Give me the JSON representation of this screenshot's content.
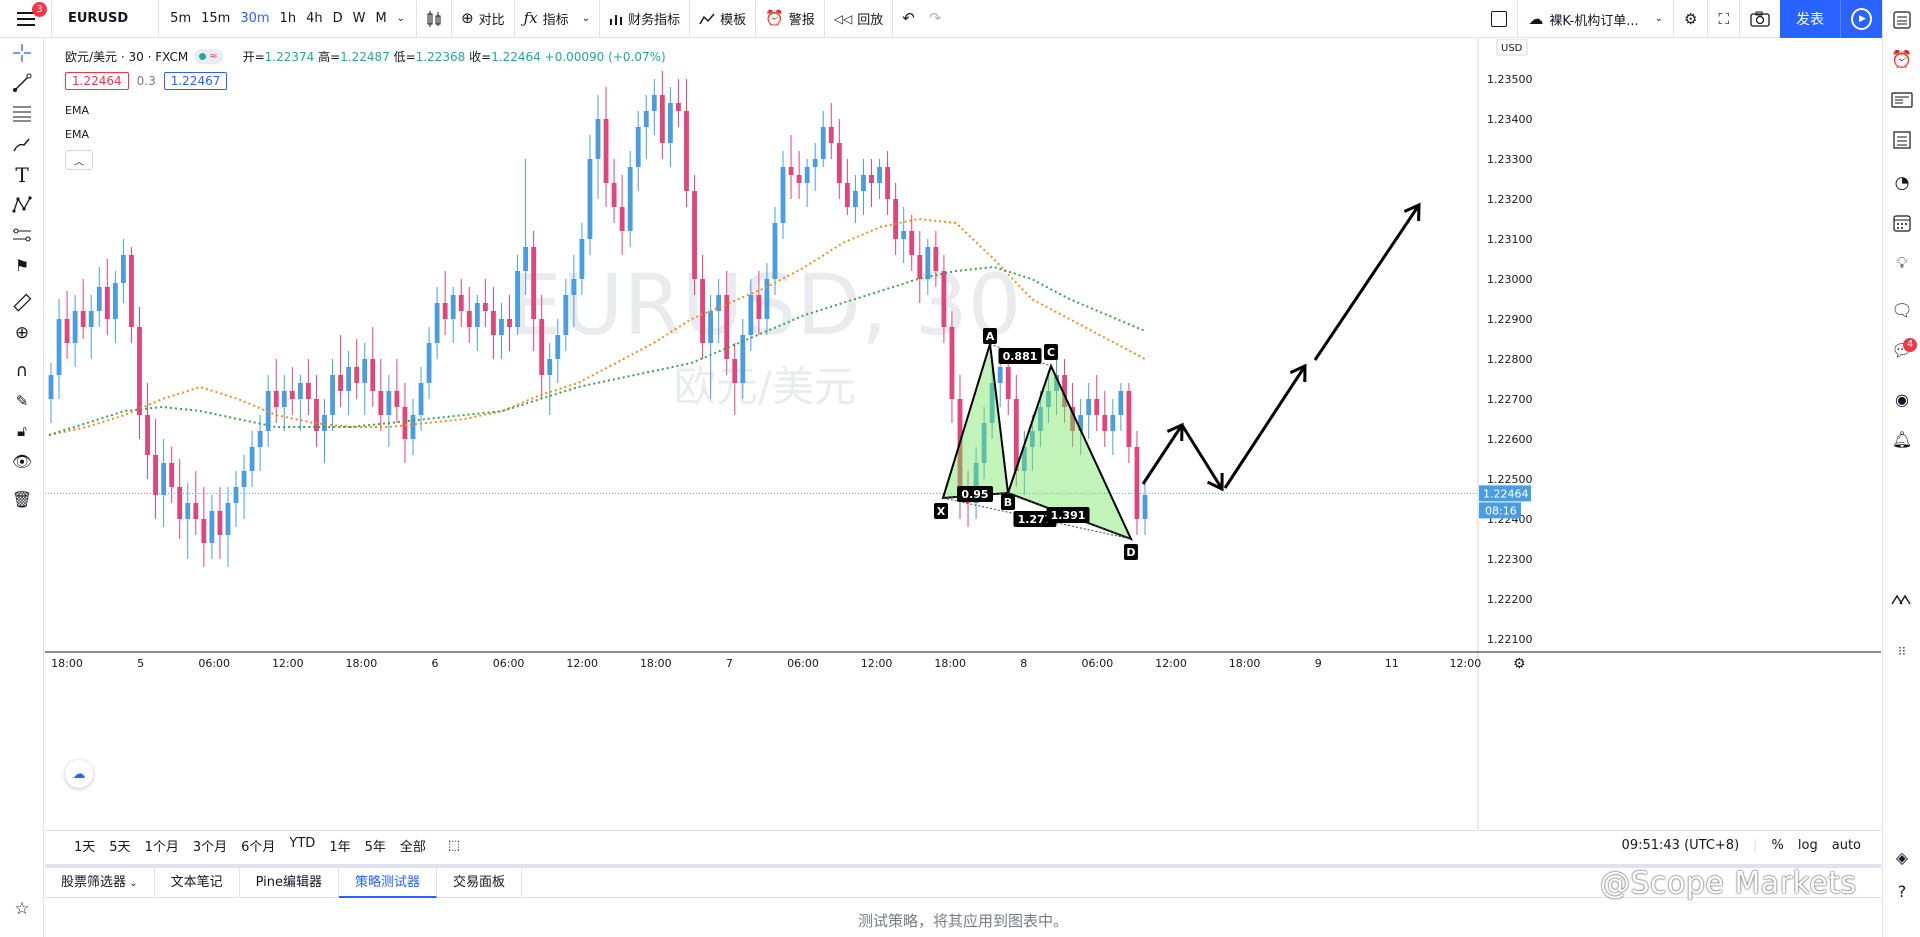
{
  "toolbar": {
    "menu_badge": "3",
    "symbol": "EURUSD",
    "intervals": [
      "5m",
      "15m",
      "30m",
      "1h",
      "4h",
      "D",
      "W",
      "M"
    ],
    "active_interval": "30m",
    "compare_label": "对比",
    "indicators_label": "指标",
    "financials_label": "财务指标",
    "templates_label": "模板",
    "alerts_label": "警报",
    "replay_label": "回放",
    "layout_name": "裸K-机构订单...",
    "publish_label": "发表"
  },
  "legend": {
    "symbol_desc": "欧元/美元 · 30 · FXCM",
    "open_label": "开=",
    "open": "1.22374",
    "high_label": "高=",
    "high": "1.22487",
    "low_label": "低=",
    "low": "1.22368",
    "close_label": "收=",
    "close": "1.22464",
    "change": "+0.00090 (+0.07%)",
    "sell_price": "1.22464",
    "spread": "0.3",
    "buy_price": "1.22467",
    "ema1": "EMA",
    "ema2": "EMA"
  },
  "chart_data": {
    "type": "candlestick",
    "watermark_symbol": "EURUSD, 30",
    "watermark_desc": "欧元/美元",
    "currency": "USD",
    "y_ticks": [
      "1.23500",
      "1.23400",
      "1.23300",
      "1.23200",
      "1.23100",
      "1.23000",
      "1.22900",
      "1.22800",
      "1.22700",
      "1.22600",
      "1.22500",
      "1.22400",
      "1.22300",
      "1.22200",
      "1.22100"
    ],
    "ylim": [
      1.2207,
      1.236
    ],
    "x_ticks": [
      "18:00",
      "5",
      "06:00",
      "12:00",
      "18:00",
      "6",
      "06:00",
      "12:00",
      "18:00",
      "7",
      "06:00",
      "12:00",
      "18:00",
      "8",
      "06:00",
      "12:00",
      "18:00",
      "9",
      "11",
      "12:00"
    ],
    "last_price": "1.22464",
    "countdown": "08:16",
    "candles": [
      [
        1.227,
        1.2279,
        1.2264,
        1.2276
      ],
      [
        1.2276,
        1.2295,
        1.227,
        1.229
      ],
      [
        1.229,
        1.2297,
        1.228,
        1.2284
      ],
      [
        1.2284,
        1.2296,
        1.2278,
        1.2292
      ],
      [
        1.2292,
        1.23,
        1.2285,
        1.2288
      ],
      [
        1.2288,
        1.2296,
        1.228,
        1.2292
      ],
      [
        1.2292,
        1.2303,
        1.2288,
        1.2298
      ],
      [
        1.2298,
        1.2305,
        1.2286,
        1.229
      ],
      [
        1.229,
        1.2302,
        1.2284,
        1.2299
      ],
      [
        1.2299,
        1.231,
        1.2294,
        1.2306
      ],
      [
        1.2306,
        1.2308,
        1.2284,
        1.2288
      ],
      [
        1.2288,
        1.2293,
        1.226,
        1.2266
      ],
      [
        1.2266,
        1.2274,
        1.225,
        1.2256
      ],
      [
        1.2256,
        1.2265,
        1.224,
        1.2246
      ],
      [
        1.2246,
        1.226,
        1.2238,
        1.2254
      ],
      [
        1.2254,
        1.2258,
        1.2244,
        1.2248
      ],
      [
        1.2248,
        1.2255,
        1.2235,
        1.224
      ],
      [
        1.224,
        1.2249,
        1.223,
        1.2244
      ],
      [
        1.2244,
        1.2252,
        1.2236,
        1.224
      ],
      [
        1.224,
        1.2248,
        1.2228,
        1.2234
      ],
      [
        1.2234,
        1.2246,
        1.223,
        1.2242
      ],
      [
        1.2242,
        1.2248,
        1.223,
        1.2236
      ],
      [
        1.2236,
        1.2248,
        1.2228,
        1.2244
      ],
      [
        1.2244,
        1.2252,
        1.2238,
        1.2248
      ],
      [
        1.2248,
        1.2256,
        1.224,
        1.2252
      ],
      [
        1.2252,
        1.2262,
        1.2248,
        1.2258
      ],
      [
        1.2258,
        1.2266,
        1.2252,
        1.2262
      ],
      [
        1.2262,
        1.2276,
        1.2258,
        1.2272
      ],
      [
        1.2272,
        1.228,
        1.2264,
        1.2268
      ],
      [
        1.2268,
        1.2276,
        1.2262,
        1.2272
      ],
      [
        1.2272,
        1.2278,
        1.2266,
        1.227
      ],
      [
        1.227,
        1.2276,
        1.2262,
        1.2274
      ],
      [
        1.2274,
        1.228,
        1.2266,
        1.227
      ],
      [
        1.227,
        1.2276,
        1.2258,
        1.2262
      ],
      [
        1.2262,
        1.227,
        1.2254,
        1.2266
      ],
      [
        1.2266,
        1.228,
        1.2262,
        1.2276
      ],
      [
        1.2276,
        1.2286,
        1.2268,
        1.2272
      ],
      [
        1.2272,
        1.2282,
        1.2266,
        1.2278
      ],
      [
        1.2278,
        1.2285,
        1.227,
        1.2274
      ],
      [
        1.2274,
        1.2284,
        1.2266,
        1.228
      ],
      [
        1.228,
        1.2288,
        1.2268,
        1.2272
      ],
      [
        1.2272,
        1.228,
        1.2262,
        1.2266
      ],
      [
        1.2266,
        1.2276,
        1.2258,
        1.2272
      ],
      [
        1.2272,
        1.228,
        1.2264,
        1.2268
      ],
      [
        1.2268,
        1.2274,
        1.2254,
        1.226
      ],
      [
        1.226,
        1.227,
        1.2256,
        1.2266
      ],
      [
        1.2266,
        1.2278,
        1.2262,
        1.2274
      ],
      [
        1.2274,
        1.2288,
        1.227,
        1.2284
      ],
      [
        1.2284,
        1.2298,
        1.228,
        1.2294
      ],
      [
        1.2294,
        1.2302,
        1.2286,
        1.229
      ],
      [
        1.229,
        1.2298,
        1.2284,
        1.2296
      ],
      [
        1.2296,
        1.23,
        1.2288,
        1.2292
      ],
      [
        1.2292,
        1.2298,
        1.2284,
        1.2288
      ],
      [
        1.2288,
        1.2296,
        1.2282,
        1.2294
      ],
      [
        1.2294,
        1.23,
        1.2288,
        1.2292
      ],
      [
        1.2292,
        1.2298,
        1.228,
        1.2286
      ],
      [
        1.2286,
        1.2294,
        1.228,
        1.229
      ],
      [
        1.229,
        1.2296,
        1.2282,
        1.2288
      ],
      [
        1.2288,
        1.2306,
        1.2286,
        1.2302
      ],
      [
        1.2302,
        1.233,
        1.2296,
        1.2308
      ],
      [
        1.2308,
        1.2312,
        1.2282,
        1.229
      ],
      [
        1.229,
        1.2296,
        1.227,
        1.2276
      ],
      [
        1.2276,
        1.2284,
        1.2266,
        1.228
      ],
      [
        1.228,
        1.229,
        1.2274,
        1.2286
      ],
      [
        1.2286,
        1.23,
        1.2282,
        1.2296
      ],
      [
        1.2296,
        1.2306,
        1.2288,
        1.23
      ],
      [
        1.23,
        1.2314,
        1.2296,
        1.231
      ],
      [
        1.231,
        1.2336,
        1.2306,
        1.233
      ],
      [
        1.233,
        1.2346,
        1.232,
        1.234
      ],
      [
        1.234,
        1.2348,
        1.2318,
        1.2324
      ],
      [
        1.2324,
        1.233,
        1.2314,
        1.2318
      ],
      [
        1.2318,
        1.2326,
        1.2306,
        1.2312
      ],
      [
        1.2312,
        1.2332,
        1.2308,
        1.2328
      ],
      [
        1.2328,
        1.2342,
        1.2322,
        1.2338
      ],
      [
        1.2338,
        1.2346,
        1.233,
        1.2342
      ],
      [
        1.2342,
        1.235,
        1.2336,
        1.2346
      ],
      [
        1.2346,
        1.2352,
        1.233,
        1.2334
      ],
      [
        1.2334,
        1.2348,
        1.2328,
        1.2344
      ],
      [
        1.2344,
        1.235,
        1.2338,
        1.2342
      ],
      [
        1.2342,
        1.235,
        1.2318,
        1.2322
      ],
      [
        1.2322,
        1.2326,
        1.2296,
        1.23
      ],
      [
        1.23,
        1.2306,
        1.228,
        1.2284
      ],
      [
        1.2284,
        1.2296,
        1.227,
        1.2292
      ],
      [
        1.2292,
        1.23,
        1.2284,
        1.2296
      ],
      [
        1.2296,
        1.2302,
        1.2276,
        1.228
      ],
      [
        1.228,
        1.2284,
        1.2266,
        1.2274
      ],
      [
        1.2274,
        1.229,
        1.227,
        1.2286
      ],
      [
        1.2286,
        1.23,
        1.2282,
        1.2296
      ],
      [
        1.2296,
        1.2302,
        1.2286,
        1.229
      ],
      [
        1.229,
        1.2304,
        1.2286,
        1.23
      ],
      [
        1.23,
        1.2318,
        1.2296,
        1.2314
      ],
      [
        1.2314,
        1.2332,
        1.231,
        1.2328
      ],
      [
        1.2328,
        1.2336,
        1.232,
        1.2326
      ],
      [
        1.2326,
        1.2332,
        1.232,
        1.2324
      ],
      [
        1.2324,
        1.233,
        1.2318,
        1.2328
      ],
      [
        1.2328,
        1.2334,
        1.2322,
        1.233
      ],
      [
        1.233,
        1.2342,
        1.2328,
        1.2338
      ],
      [
        1.2338,
        1.2344,
        1.233,
        1.2334
      ],
      [
        1.2334,
        1.234,
        1.232,
        1.2324
      ],
      [
        1.2324,
        1.233,
        1.2316,
        1.2318
      ],
      [
        1.2318,
        1.2326,
        1.2314,
        1.2322
      ],
      [
        1.2322,
        1.233,
        1.2316,
        1.2326
      ],
      [
        1.2326,
        1.233,
        1.2318,
        1.2324
      ],
      [
        1.2324,
        1.233,
        1.232,
        1.2328
      ],
      [
        1.2328,
        1.2332,
        1.2316,
        1.232
      ],
      [
        1.232,
        1.2324,
        1.2306,
        1.231
      ],
      [
        1.231,
        1.2318,
        1.2304,
        1.2312
      ],
      [
        1.2312,
        1.2316,
        1.2302,
        1.2306
      ],
      [
        1.2306,
        1.2312,
        1.2294,
        1.23
      ],
      [
        1.23,
        1.231,
        1.2296,
        1.2308
      ],
      [
        1.2308,
        1.2312,
        1.2298,
        1.2302
      ],
      [
        1.2302,
        1.2306,
        1.2284,
        1.2288
      ],
      [
        1.2288,
        1.2292,
        1.2264,
        1.227
      ],
      [
        1.227,
        1.2276,
        1.224,
        1.2246
      ],
      [
        1.2246,
        1.2252,
        1.2238,
        1.2244
      ],
      [
        1.2244,
        1.2258,
        1.224,
        1.2254
      ],
      [
        1.2254,
        1.2268,
        1.225,
        1.2264
      ],
      [
        1.2264,
        1.2278,
        1.226,
        1.2274
      ],
      [
        1.2274,
        1.2282,
        1.2268,
        1.2278
      ],
      [
        1.2278,
        1.2282,
        1.2266,
        1.227
      ],
      [
        1.227,
        1.2276,
        1.2248,
        1.2252
      ],
      [
        1.2252,
        1.2262,
        1.2246,
        1.2258
      ],
      [
        1.2258,
        1.2266,
        1.2252,
        1.2262
      ],
      [
        1.2262,
        1.2272,
        1.2258,
        1.2268
      ],
      [
        1.2268,
        1.2276,
        1.2264,
        1.2272
      ],
      [
        1.2272,
        1.228,
        1.2266,
        1.2276
      ],
      [
        1.2276,
        1.228,
        1.2264,
        1.2268
      ],
      [
        1.2268,
        1.2274,
        1.2258,
        1.2262
      ],
      [
        1.2262,
        1.227,
        1.2256,
        1.2266
      ],
      [
        1.2266,
        1.2274,
        1.226,
        1.227
      ],
      [
        1.227,
        1.2276,
        1.2262,
        1.2266
      ],
      [
        1.2266,
        1.2272,
        1.2258,
        1.2262
      ],
      [
        1.2262,
        1.227,
        1.2256,
        1.2266
      ],
      [
        1.2266,
        1.2274,
        1.2262,
        1.2272
      ],
      [
        1.2272,
        1.2274,
        1.2254,
        1.2258
      ],
      [
        1.2258,
        1.2262,
        1.2236,
        1.224
      ],
      [
        1.224,
        1.225,
        1.2236,
        1.2246
      ]
    ],
    "ema_orange": [
      1.2261,
      1.2263,
      1.2266,
      1.227,
      1.2273,
      1.227,
      1.2266,
      1.2264,
      1.2263,
      1.2263,
      1.2264,
      1.2265,
      1.2267,
      1.2271,
      1.2274,
      1.2279,
      1.2284,
      1.229,
      1.2294,
      1.2298,
      1.2303,
      1.2309,
      1.2313,
      1.2315,
      1.2314,
      1.2305,
      1.2295,
      1.229,
      1.2285,
      1.228
    ],
    "ema_green": [
      1.2261,
      1.2264,
      1.2267,
      1.2268,
      1.2267,
      1.2265,
      1.2263,
      1.2263,
      1.2263,
      1.2264,
      1.2265,
      1.2266,
      1.2267,
      1.227,
      1.2273,
      1.2275,
      1.2277,
      1.2279,
      1.2283,
      1.2287,
      1.2291,
      1.2294,
      1.2297,
      1.23,
      1.2302,
      1.2303,
      1.23,
      1.2295,
      1.2291,
      1.2287
    ],
    "harmonic": {
      "points": [
        "X",
        "A",
        "B",
        "C",
        "D"
      ],
      "ratios": [
        "0.881",
        "0.95",
        "1.277",
        "1.391"
      ]
    }
  },
  "range_bar": {
    "ranges": [
      "1天",
      "5天",
      "1个月",
      "3个月",
      "6个月",
      "YTD",
      "1年",
      "5年",
      "全部"
    ],
    "time": "09:51:43 (UTC+8)",
    "percent": "%",
    "log": "log",
    "auto": "auto"
  },
  "bottom_panel": {
    "tabs": [
      "股票筛选器",
      "文本笔记",
      "Pine编辑器",
      "策略测试器",
      "交易面板"
    ],
    "active_tab": "策略测试器",
    "message": "测试策略，将其应用到图表中。"
  },
  "brand_watermark": "@Scope Markets",
  "right_badge": "4"
}
